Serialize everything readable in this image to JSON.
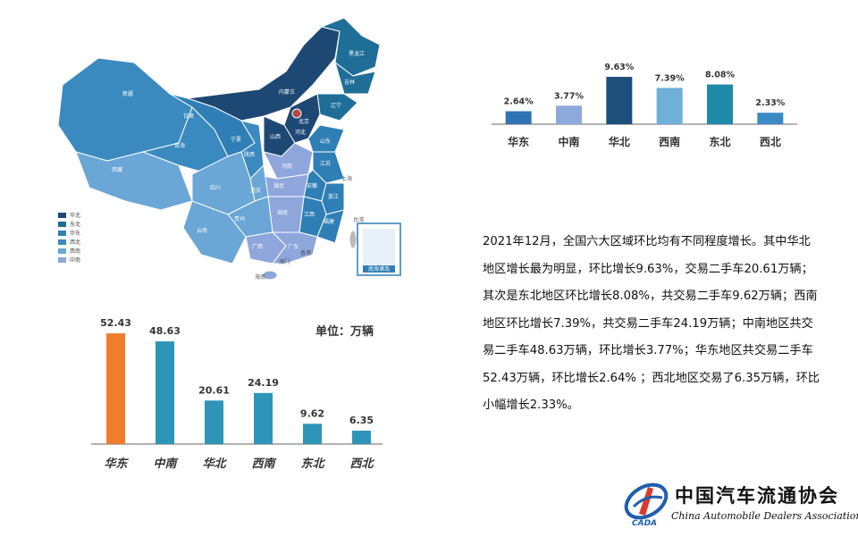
{
  "map": {
    "legend": [
      {
        "label": "华北",
        "color": "#1e4874"
      },
      {
        "label": "东北",
        "color": "#1f6e98"
      },
      {
        "label": "华东",
        "color": "#2f7fb6"
      },
      {
        "label": "西北",
        "color": "#3a8ac0"
      },
      {
        "label": "西南",
        "color": "#6aa6d6"
      },
      {
        "label": "中南",
        "color": "#8ea6dc"
      }
    ],
    "province_labels": [
      "新疆",
      "西藏",
      "青海",
      "甘肃",
      "内蒙古",
      "黑龙江",
      "吉林",
      "辽宁",
      "北京",
      "河北",
      "山西",
      "山东",
      "陕西",
      "宁夏",
      "河南",
      "江苏",
      "安徽",
      "上海",
      "湖北",
      "四川",
      "重庆",
      "浙江",
      "湖南",
      "江西",
      "贵州",
      "云南",
      "福建",
      "广西",
      "广东",
      "台湾",
      "海南",
      "香港",
      "澳门",
      "南海诸岛"
    ]
  },
  "unit_label": "单位：万辆",
  "chart_data": [
    {
      "type": "bar",
      "title": "",
      "categories": [
        "华东",
        "中南",
        "华北",
        "西南",
        "东北",
        "西北"
      ],
      "values": [
        52.43,
        48.63,
        20.61,
        24.19,
        9.62,
        6.35
      ],
      "value_labels": [
        "52.43",
        "48.63",
        "20.61",
        "24.19",
        "9.62",
        "6.35"
      ],
      "colors": [
        "#ef7d2f",
        "#2e95b8",
        "#2e95b8",
        "#2e95b8",
        "#2e95b8",
        "#2e95b8"
      ],
      "ylabel": "万辆",
      "ylim": [
        0,
        55
      ],
      "grid": false
    },
    {
      "type": "bar",
      "title": "",
      "categories": [
        "华东",
        "中南",
        "华北",
        "西南",
        "东北",
        "西北"
      ],
      "values": [
        2.64,
        3.77,
        9.63,
        7.39,
        8.08,
        2.33
      ],
      "value_labels": [
        "2.64%",
        "3.77%",
        "9.63%",
        "7.39%",
        "8.08%",
        "2.33%"
      ],
      "colors": [
        "#2f73b4",
        "#8fa9dc",
        "#1e4e7c",
        "#6fb0d8",
        "#1f8aaa",
        "#3a8ac4"
      ],
      "ylim": [
        0,
        10
      ],
      "grid": false
    }
  ],
  "summary": "2021年12月，全国六大区域环比均有不同程度增长。其中华北地区增长最为明显，环比增长9.63%，交易二手车20.61万辆；其次是东北地区环比增长8.08%，共交易二手车9.62万辆；西南地区环比增长7.39%，共交易二手车24.19万辆；中南地区共交易二手车48.63万辆，环比增长3.77%；华东地区共交易二手车52.43万辆，环比增长2.64% ；西北地区交易了6.35万辆，环比小幅增长2.33%。",
  "logo": {
    "name_cn": "中国汽车流通协会",
    "name_en": "China Automobile Dealers Association",
    "abbr": "CADA"
  }
}
